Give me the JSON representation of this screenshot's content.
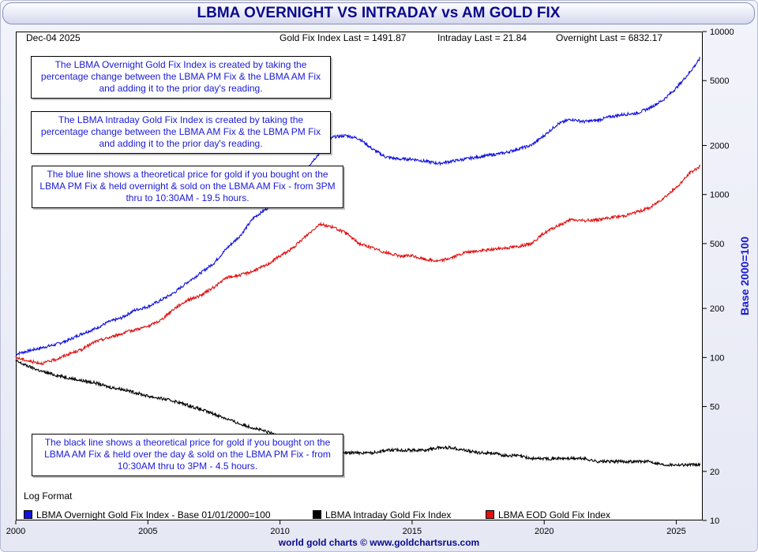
{
  "title": "LBMA OVERNIGHT VS INTRADAY vs AM GOLD FIX",
  "header": {
    "date": "Dec-04  2025",
    "gold_fix_last": "Gold Fix Index Last = 1491.87",
    "intraday_last": "Intraday Last = 21.84",
    "overnight_last": "Overnight Last = 6832.17"
  },
  "notes": [
    "The LBMA Overnight Gold Fix Index is created by taking the percentage change between the LBMA PM Fix & the LBMA AM Fix and adding it to the prior day's reading.",
    "The LBMA Intraday Gold Fix Index is created by taking the percentage change between the LBMA AM Fix & the LBMA PM Fix and adding it to the prior day's reading.",
    "The blue line shows a theoretical price for gold if you bought on the LBMA PM Fix & held overnight & sold on the LBMA AM Fix - from 3PM thru to 10:30AM - 19.5 hours.",
    "The black line shows a theoretical price for gold if you bought on the LBMA AM Fix & held over the day & sold on the LBMA PM Fix - from 10:30AM thru to 3PM - 4.5 hours."
  ],
  "log_format_label": "Log Format",
  "y_axis_title": "Base 2000=100",
  "footer": "world gold charts © www.goldchartsrus.com",
  "colors": {
    "overnight": "#1010e0",
    "intraday": "#000000",
    "eod": "#e01010",
    "title": "#0a0a8c"
  },
  "chart_data": {
    "type": "line",
    "yscale": "log",
    "xlim": [
      2000,
      2026
    ],
    "ylim": [
      10,
      10000
    ],
    "x_ticks": [
      "2000",
      "2005",
      "2010",
      "2015",
      "2020",
      "2025"
    ],
    "y_ticks": [
      "10",
      "20",
      "50",
      "100",
      "200",
      "500",
      "1000",
      "2000",
      "5000",
      "10000"
    ],
    "x": [
      2000,
      2000.5,
      2001,
      2001.5,
      2002,
      2002.5,
      2003,
      2003.5,
      2004,
      2004.5,
      2005,
      2005.5,
      2006,
      2006.5,
      2007,
      2007.5,
      2008,
      2008.5,
      2009,
      2009.5,
      2010,
      2010.5,
      2011,
      2011.5,
      2012,
      2012.5,
      2013,
      2013.5,
      2014,
      2014.5,
      2015,
      2015.5,
      2016,
      2016.5,
      2017,
      2017.5,
      2018,
      2018.5,
      2019,
      2019.5,
      2020,
      2020.5,
      2021,
      2021.5,
      2022,
      2022.5,
      2023,
      2023.5,
      2024,
      2024.5,
      2025,
      2025.5,
      2025.9
    ],
    "series": [
      {
        "name": "LBMA Overnight Gold Fix Index - Base 01/01/2000=100",
        "values": [
          105,
          110,
          115,
          120,
          128,
          140,
          150,
          165,
          175,
          195,
          205,
          225,
          250,
          290,
          330,
          380,
          470,
          560,
          720,
          820,
          950,
          1100,
          1450,
          1800,
          2250,
          2300,
          2200,
          1900,
          1700,
          1650,
          1650,
          1600,
          1550,
          1600,
          1650,
          1700,
          1750,
          1800,
          1900,
          2000,
          2300,
          2700,
          2900,
          2800,
          2850,
          3000,
          3100,
          3150,
          3400,
          3800,
          4500,
          5600,
          6832.17
        ]
      },
      {
        "name": "LBMA Intraday Gold Fix Index",
        "values": [
          95,
          88,
          82,
          78,
          75,
          72,
          70,
          66,
          64,
          61,
          58,
          56,
          54,
          51,
          48,
          45,
          42,
          39,
          37,
          35,
          33,
          31,
          30,
          28,
          27,
          26,
          26,
          26,
          27,
          27,
          27,
          27,
          28,
          28,
          27,
          26,
          26,
          25,
          25,
          24,
          24,
          24,
          24,
          24,
          23,
          23,
          23,
          23,
          23,
          22,
          22,
          22,
          21.84
        ]
      },
      {
        "name": "LBMA EOD Gold Fix Index",
        "values": [
          100,
          95,
          92,
          97,
          105,
          112,
          125,
          132,
          140,
          148,
          155,
          170,
          200,
          225,
          240,
          270,
          310,
          320,
          340,
          370,
          420,
          470,
          560,
          660,
          630,
          580,
          500,
          470,
          440,
          420,
          420,
          400,
          390,
          410,
          440,
          450,
          460,
          470,
          480,
          500,
          580,
          640,
          700,
          690,
          700,
          720,
          740,
          780,
          830,
          950,
          1100,
          1350,
          1491.87
        ]
      }
    ],
    "legend": "bottom"
  }
}
